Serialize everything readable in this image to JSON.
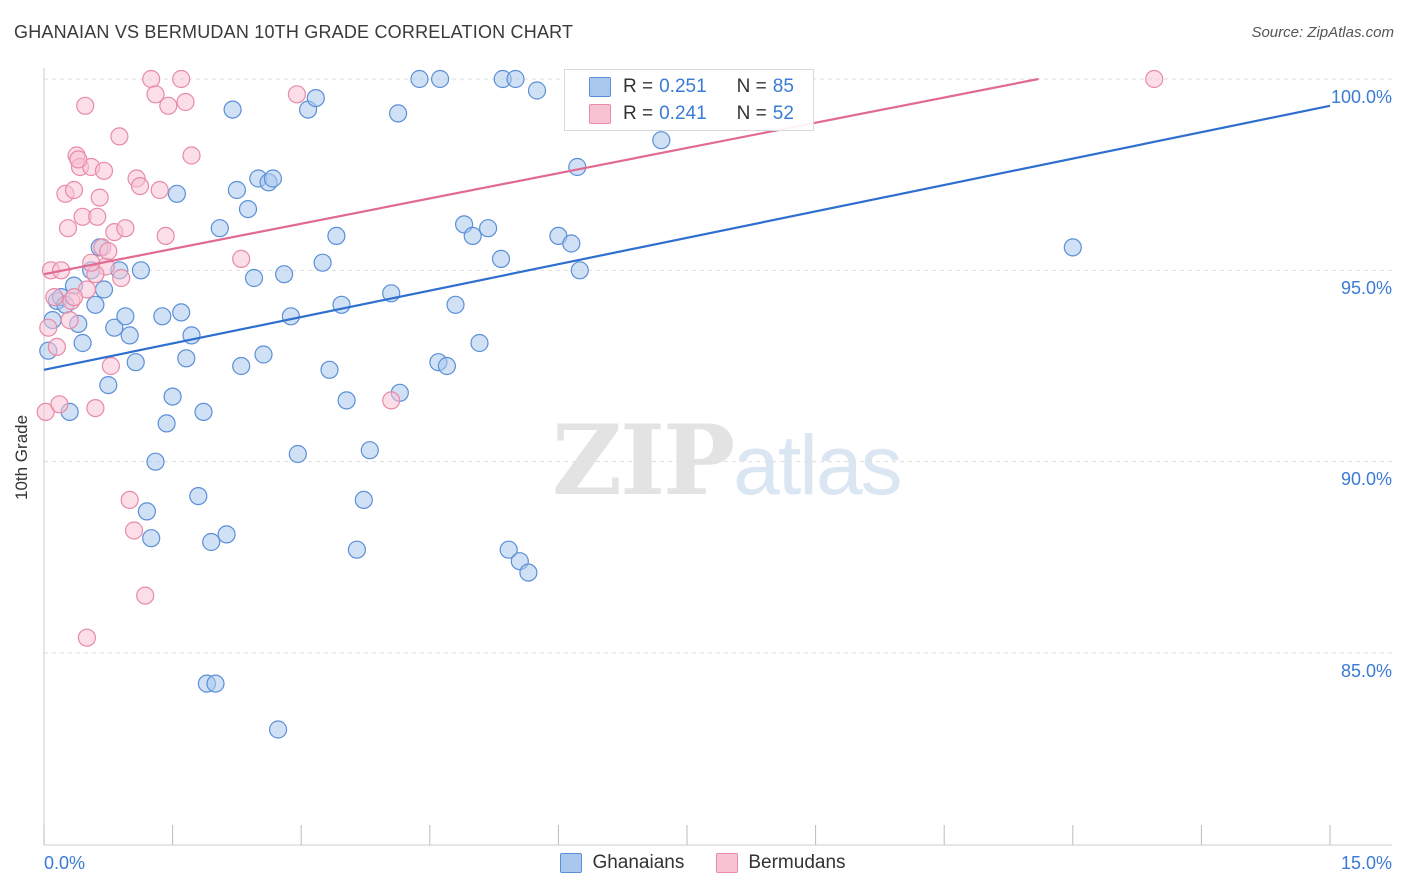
{
  "header": {
    "title": "GHANAIAN VS BERMUDAN 10TH GRADE CORRELATION CHART",
    "source": "Source: ZipAtlas.com"
  },
  "watermark": {
    "zip": "ZIP",
    "atlas": "atlas"
  },
  "legend_top": {
    "rows": [
      {
        "r_key": "R =",
        "r_value": "0.251",
        "n_key": "N =",
        "n_value": "85",
        "color": "#aac8ee",
        "border": "#5b8fd6"
      },
      {
        "r_key": "R =",
        "r_value": "0.241",
        "n_key": "N =",
        "n_value": "52",
        "color": "#f7c3d3",
        "border": "#e88aa8"
      }
    ]
  },
  "legend_bottom": [
    {
      "label": "Ghanaians",
      "color": "#aac8ee",
      "border": "#5b8fd6"
    },
    {
      "label": "Bermudans",
      "color": "#f7c3d3",
      "border": "#e88aa8"
    }
  ],
  "axis_labels": {
    "y": "10th Grade",
    "x_min": "0.0%",
    "x_max": "15.0%",
    "y_ticks": [
      "100.0%",
      "95.0%",
      "90.0%",
      "85.0%"
    ]
  },
  "chart_data": {
    "type": "scatter",
    "title": "GHANAIAN VS BERMUDAN 10TH GRADE CORRELATION CHART",
    "xlabel": "",
    "ylabel": "10th Grade",
    "xlim": [
      0,
      15
    ],
    "ylim": [
      80.5,
      100.8
    ],
    "x_ticks": [
      0,
      15
    ],
    "y_ticks": [
      85,
      90,
      95,
      100
    ],
    "grid": "horizontal dashed",
    "legend_placement": "top-center",
    "series": [
      {
        "name": "Ghanaians",
        "color": "#5b8fd6",
        "fill": "#aac8ee",
        "trend": {
          "x0": 0,
          "y0": 92.4,
          "x1": 15,
          "y1": 99.3,
          "color": "#2f6fce"
        },
        "points": [
          [
            0.05,
            92.9
          ],
          [
            0.1,
            93.7
          ],
          [
            0.15,
            94.2
          ],
          [
            0.2,
            94.3
          ],
          [
            0.25,
            94.1
          ],
          [
            0.3,
            91.3
          ],
          [
            0.35,
            94.6
          ],
          [
            0.4,
            93.6
          ],
          [
            0.45,
            93.1
          ],
          [
            0.55,
            95.0
          ],
          [
            0.6,
            94.1
          ],
          [
            0.65,
            95.6
          ],
          [
            0.7,
            94.5
          ],
          [
            0.75,
            92.0
          ],
          [
            0.82,
            93.5
          ],
          [
            0.88,
            95.0
          ],
          [
            0.95,
            93.8
          ],
          [
            1.0,
            93.3
          ],
          [
            1.07,
            92.6
          ],
          [
            1.13,
            95.0
          ],
          [
            1.2,
            88.7
          ],
          [
            1.25,
            88.0
          ],
          [
            1.3,
            90.0
          ],
          [
            1.38,
            93.8
          ],
          [
            1.43,
            91.0
          ],
          [
            1.5,
            91.7
          ],
          [
            1.55,
            97.0
          ],
          [
            1.6,
            93.9
          ],
          [
            1.66,
            92.7
          ],
          [
            1.72,
            93.3
          ],
          [
            1.8,
            89.1
          ],
          [
            1.86,
            91.3
          ],
          [
            1.9,
            84.2
          ],
          [
            1.95,
            87.9
          ],
          [
            2.0,
            84.2
          ],
          [
            2.05,
            96.1
          ],
          [
            2.13,
            88.1
          ],
          [
            2.2,
            99.2
          ],
          [
            2.25,
            97.1
          ],
          [
            2.3,
            92.5
          ],
          [
            2.38,
            96.6
          ],
          [
            2.45,
            94.8
          ],
          [
            2.5,
            97.4
          ],
          [
            2.56,
            92.8
          ],
          [
            2.62,
            97.3
          ],
          [
            2.67,
            97.4
          ],
          [
            2.73,
            83.0
          ],
          [
            2.8,
            94.9
          ],
          [
            2.88,
            93.8
          ],
          [
            2.96,
            90.2
          ],
          [
            3.08,
            99.2
          ],
          [
            3.17,
            99.5
          ],
          [
            3.25,
            95.2
          ],
          [
            3.33,
            92.4
          ],
          [
            3.41,
            95.9
          ],
          [
            3.47,
            94.1
          ],
          [
            3.53,
            91.6
          ],
          [
            3.65,
            87.7
          ],
          [
            3.73,
            89.0
          ],
          [
            3.8,
            90.3
          ],
          [
            4.05,
            94.4
          ],
          [
            4.13,
            99.1
          ],
          [
            4.15,
            91.8
          ],
          [
            4.38,
            100.0
          ],
          [
            4.6,
            92.6
          ],
          [
            4.62,
            100.0
          ],
          [
            4.7,
            92.5
          ],
          [
            4.8,
            94.1
          ],
          [
            4.9,
            96.2
          ],
          [
            5.0,
            95.9
          ],
          [
            5.08,
            93.1
          ],
          [
            5.18,
            96.1
          ],
          [
            5.33,
            95.3
          ],
          [
            5.35,
            100.0
          ],
          [
            5.5,
            100.0
          ],
          [
            5.42,
            87.7
          ],
          [
            5.55,
            87.4
          ],
          [
            5.65,
            87.1
          ],
          [
            5.75,
            99.7
          ],
          [
            6.0,
            95.9
          ],
          [
            6.15,
            95.7
          ],
          [
            6.22,
            97.7
          ],
          [
            6.25,
            95.0
          ],
          [
            7.2,
            98.4
          ],
          [
            12.0,
            95.6
          ]
        ]
      },
      {
        "name": "Bermudans",
        "color": "#e88aa8",
        "fill": "#f7c3d3",
        "trend": {
          "x0": 0,
          "y0": 94.9,
          "x1": 11.6,
          "y1": 100.0,
          "color": "#e06a92"
        },
        "points": [
          [
            0.02,
            91.3
          ],
          [
            0.05,
            93.5
          ],
          [
            0.08,
            95.0
          ],
          [
            0.12,
            94.3
          ],
          [
            0.15,
            93.0
          ],
          [
            0.18,
            91.5
          ],
          [
            0.2,
            95.0
          ],
          [
            0.25,
            97.0
          ],
          [
            0.28,
            96.1
          ],
          [
            0.3,
            93.7
          ],
          [
            0.32,
            94.2
          ],
          [
            0.35,
            97.1
          ],
          [
            0.38,
            98.0
          ],
          [
            0.42,
            97.7
          ],
          [
            0.45,
            96.4
          ],
          [
            0.48,
            99.3
          ],
          [
            0.5,
            94.5
          ],
          [
            0.55,
            97.7
          ],
          [
            0.6,
            91.4
          ],
          [
            0.62,
            96.4
          ],
          [
            0.65,
            96.9
          ],
          [
            0.68,
            95.6
          ],
          [
            0.72,
            95.1
          ],
          [
            0.75,
            95.5
          ],
          [
            0.78,
            92.5
          ],
          [
            0.82,
            96.0
          ],
          [
            0.88,
            98.5
          ],
          [
            0.9,
            94.8
          ],
          [
            0.95,
            96.1
          ],
          [
            1.0,
            89.0
          ],
          [
            1.05,
            88.2
          ],
          [
            1.08,
            97.4
          ],
          [
            1.12,
            97.2
          ],
          [
            1.18,
            86.5
          ],
          [
            1.25,
            100.0
          ],
          [
            1.3,
            99.6
          ],
          [
            1.35,
            97.1
          ],
          [
            1.42,
            95.9
          ],
          [
            1.45,
            99.3
          ],
          [
            1.6,
            100.0
          ],
          [
            1.65,
            99.4
          ],
          [
            1.72,
            98.0
          ],
          [
            2.3,
            95.3
          ],
          [
            2.95,
            99.6
          ],
          [
            4.05,
            91.6
          ],
          [
            12.95,
            100.0
          ],
          [
            0.5,
            85.4
          ],
          [
            0.6,
            94.9
          ],
          [
            0.35,
            94.3
          ],
          [
            0.55,
            95.2
          ],
          [
            0.4,
            97.9
          ],
          [
            0.7,
            97.6
          ]
        ]
      }
    ]
  }
}
